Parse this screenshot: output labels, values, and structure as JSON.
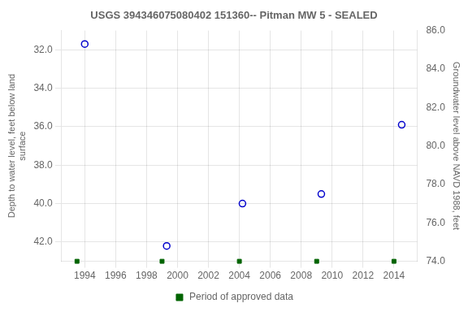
{
  "chart_data": {
    "type": "scatter",
    "title": "USGS 394346075080402 151360-- Pitman MW 5 - SEALED",
    "ylabel": "Depth to water level, feet below land\nsurface",
    "y2label": "Groundwater level above NAVD 1988, feet",
    "xlim": [
      1992.5,
      2015.5
    ],
    "xticks": [
      1994,
      1996,
      1998,
      2000,
      2002,
      2004,
      2006,
      2008,
      2010,
      2012,
      2014
    ],
    "ylim": [
      43.0,
      31.0
    ],
    "yticks": [
      {
        "value": 32.0,
        "label": "32.0"
      },
      {
        "value": 34.0,
        "label": "34.0"
      },
      {
        "value": 36.0,
        "label": "36.0"
      },
      {
        "value": 38.0,
        "label": "38.0"
      },
      {
        "value": 40.0,
        "label": "40.0"
      },
      {
        "value": 42.0,
        "label": "42.0"
      }
    ],
    "y2lim": [
      74.0,
      86.0
    ],
    "y2ticks": [
      {
        "value": 74.0,
        "label": "74.0"
      },
      {
        "value": 76.0,
        "label": "76.0"
      },
      {
        "value": 78.0,
        "label": "78.0"
      },
      {
        "value": 80.0,
        "label": "80.0"
      },
      {
        "value": 82.0,
        "label": "82.0"
      },
      {
        "value": 84.0,
        "label": "84.0"
      },
      {
        "value": 86.0,
        "label": "86.0"
      }
    ],
    "grid": true,
    "legend": "bottom",
    "series": [
      {
        "color": "#0000cc",
        "marker": "circle",
        "x": [
          1994.0,
          1999.3,
          2004.2,
          2009.3,
          2014.5
        ],
        "values": [
          31.7,
          42.2,
          40.0,
          39.5,
          35.9
        ]
      },
      {
        "name": "Period of approved data",
        "color": "#006400",
        "marker": "square",
        "x": [
          1993.5,
          1999.0,
          2004.0,
          2009.0,
          2014.0
        ]
      }
    ]
  }
}
